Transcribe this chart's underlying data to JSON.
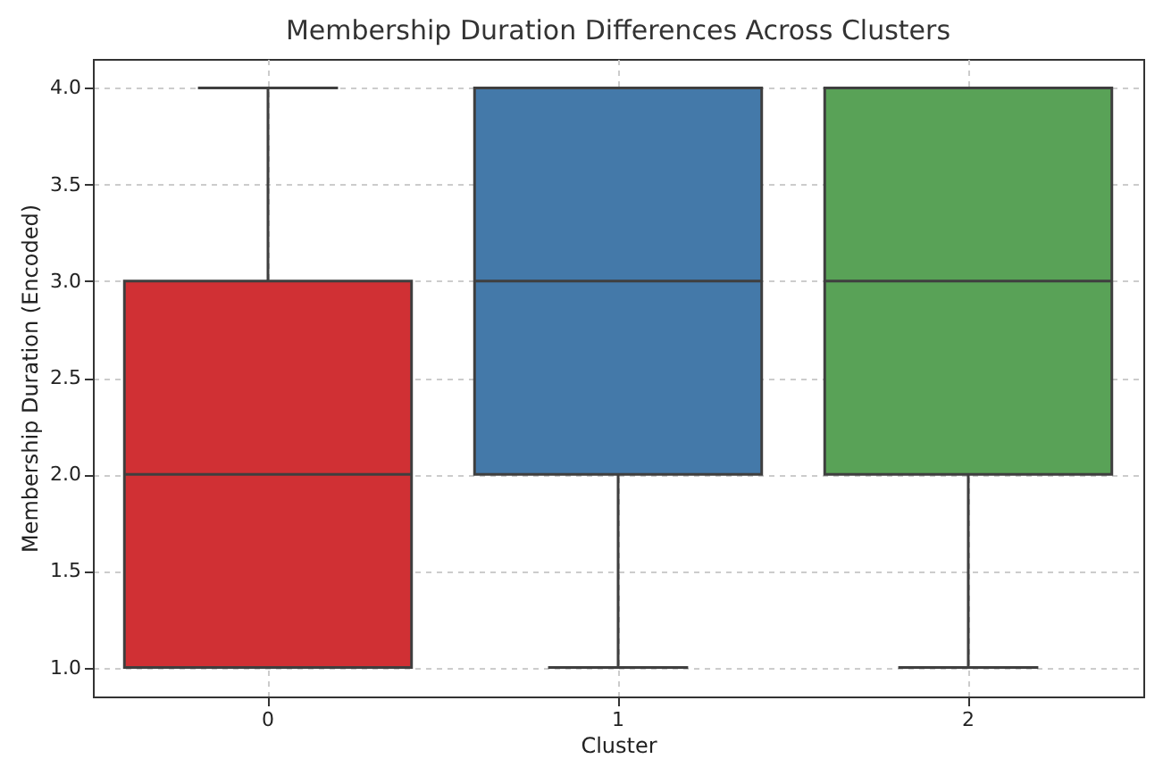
{
  "chart_data": {
    "type": "box",
    "title": "Membership Duration Differences Across Clusters",
    "xlabel": "Cluster",
    "ylabel": "Membership Duration (Encoded)",
    "categories": [
      "0",
      "1",
      "2"
    ],
    "boxes": [
      {
        "low": 1,
        "q1": 1,
        "median": 2,
        "q3": 3,
        "high": 4
      },
      {
        "low": 1,
        "q1": 2,
        "median": 3,
        "q3": 4,
        "high": 4
      },
      {
        "low": 1,
        "q1": 2,
        "median": 3,
        "q3": 4,
        "high": 4
      }
    ],
    "colors": [
      "#d03034",
      "#4479a9",
      "#59a257"
    ],
    "ylim": [
      0.85,
      4.15
    ],
    "yticks": [
      {
        "value": 1,
        "label": "1.0"
      },
      {
        "value": 1.5,
        "label": "1.5"
      },
      {
        "value": 2,
        "label": "2.0"
      },
      {
        "value": 2.5,
        "label": "2.5"
      },
      {
        "value": 3,
        "label": "3.0"
      },
      {
        "value": 3.5,
        "label": "3.5"
      },
      {
        "value": 4,
        "label": "4.0"
      }
    ],
    "grid": true
  }
}
